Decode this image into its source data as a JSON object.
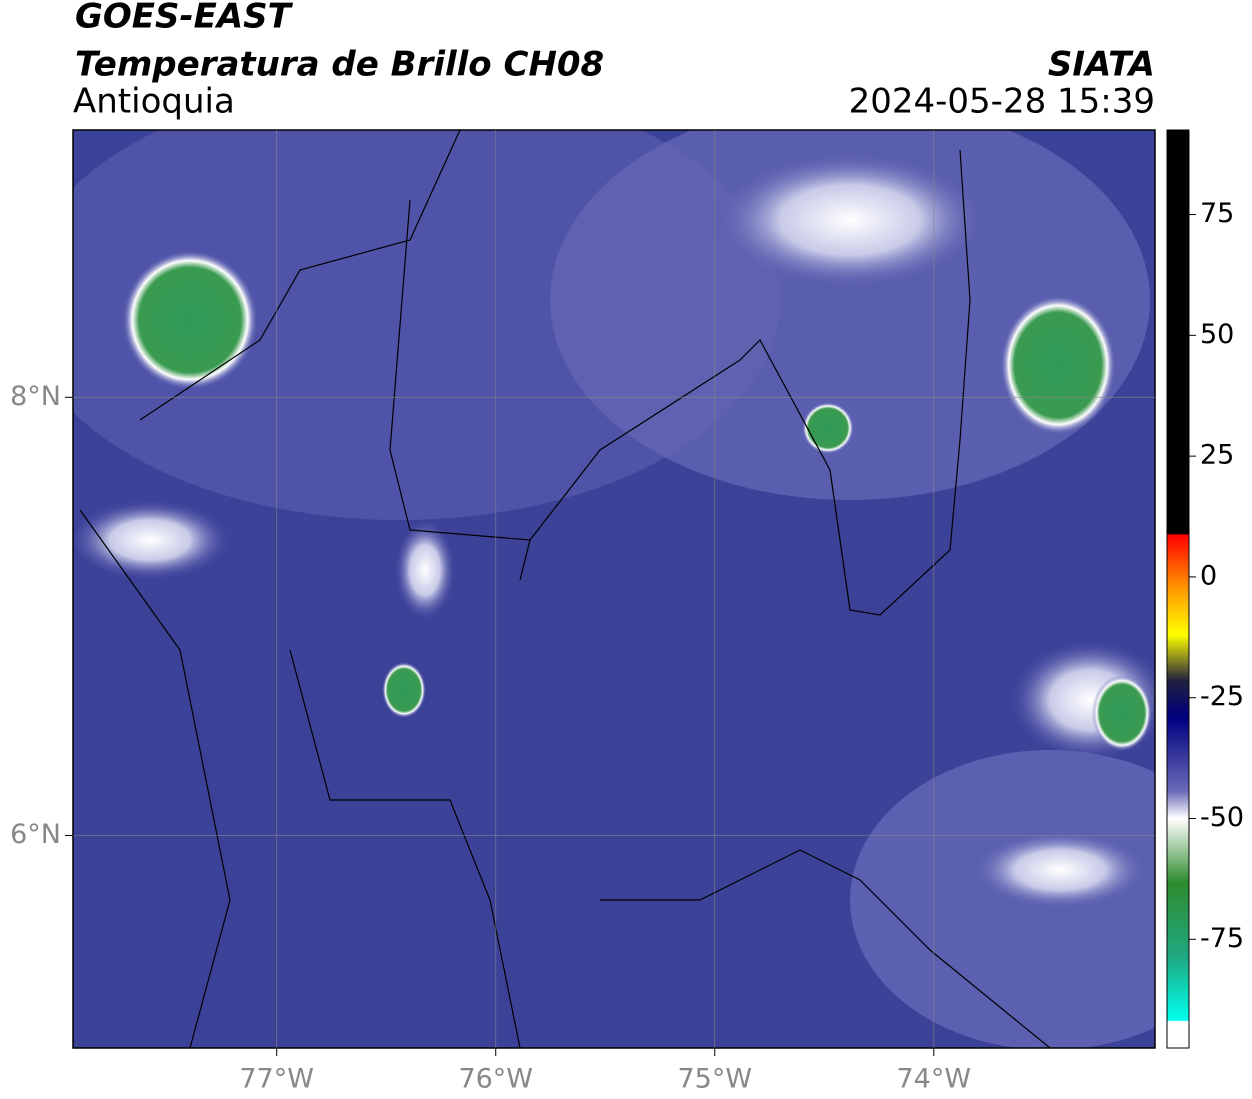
{
  "header": {
    "title": "GOES-EAST",
    "subtitle": "Temperatura de Brillo CH08",
    "region": "Antioquia",
    "source": "SIATA",
    "timestamp": "2024-05-28 15:39"
  },
  "map": {
    "xlim": [
      -77.93,
      -72.99
    ],
    "ylim": [
      5.03,
      9.22
    ],
    "xticks": [
      {
        "value": -77,
        "label": "77°W"
      },
      {
        "value": -76,
        "label": "76°W"
      },
      {
        "value": -75,
        "label": "75°W"
      },
      {
        "value": -74,
        "label": "74°W"
      }
    ],
    "yticks": [
      {
        "value": 8,
        "label": "8°N"
      },
      {
        "value": 6,
        "label": "6°N"
      }
    ],
    "grid": true
  },
  "colorbar": {
    "clim": [
      -97.5,
      92.5
    ],
    "ticks": [
      75,
      50,
      25,
      0,
      -25,
      -50,
      -75
    ]
  }
}
